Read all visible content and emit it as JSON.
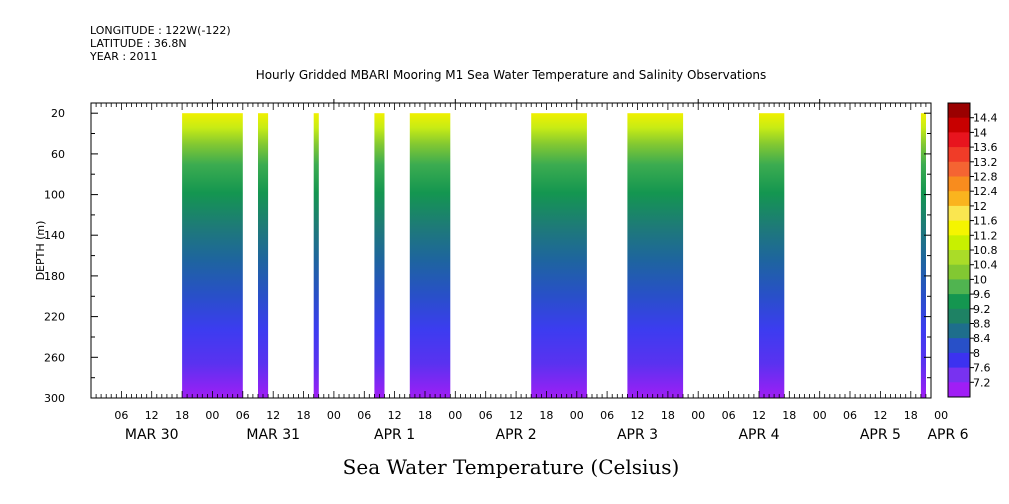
{
  "header": {
    "longitude": "LONGITUDE : 122W(-122)",
    "latitude": "LATITUDE : 36.8N",
    "year": "YEAR : 2011"
  },
  "footer_label": "Sea Water Temperature (Celsius)",
  "chart_data": {
    "type": "heatmap",
    "title": "Hourly Gridded MBARI Mooring M1 Sea Water Temperature and Salinity Observations",
    "xlabel": "",
    "ylabel": "DEPTH (m)",
    "x_range_hours_from_mar30_00": [
      0,
      166
    ],
    "ylim": [
      300,
      10
    ],
    "y_ticks": [
      20,
      60,
      100,
      140,
      180,
      220,
      260,
      300
    ],
    "x_hour_ticks": [
      "06",
      "12",
      "18",
      "00",
      "06",
      "12",
      "18",
      "00",
      "06",
      "12",
      "18",
      "00",
      "06",
      "12",
      "18",
      "00",
      "06",
      "12",
      "18",
      "00",
      "06",
      "12",
      "18",
      "00",
      "06",
      "12",
      "18",
      "00"
    ],
    "x_day_labels": [
      "MAR 30",
      "MAR 31",
      "APR 1",
      "APR 2",
      "APR 3",
      "APR 4",
      "APR 5",
      "APR 6"
    ],
    "colorbar": {
      "labels": [
        "14.4",
        "14",
        "13.6",
        "13.2",
        "12.8",
        "12.4",
        "12",
        "11.6",
        "11.2",
        "10.8",
        "10.4",
        "10",
        "9.6",
        "9.2",
        "8.8",
        "8.4",
        "8",
        "7.6",
        "7.2"
      ],
      "colors": [
        "#9a0000",
        "#c80000",
        "#e8141e",
        "#f03c28",
        "#f56432",
        "#f88c1e",
        "#fab41e",
        "#fae650",
        "#f5f500",
        "#c8f000",
        "#aadc28",
        "#82c832",
        "#50b450",
        "#149650",
        "#1e8264",
        "#1e6e8c",
        "#2850c8",
        "#3c32f0",
        "#7832f0",
        "#a01ef5"
      ]
    },
    "segments_hours": [
      {
        "start": 18,
        "end": 30
      },
      {
        "start": 33,
        "end": 35
      },
      {
        "start": 44,
        "end": 45
      },
      {
        "start": 56,
        "end": 58
      },
      {
        "start": 63,
        "end": 71
      },
      {
        "start": 87,
        "end": 98
      },
      {
        "start": 106,
        "end": 117
      },
      {
        "start": 132,
        "end": 137
      },
      {
        "start": 164,
        "end": 165
      }
    ]
  }
}
